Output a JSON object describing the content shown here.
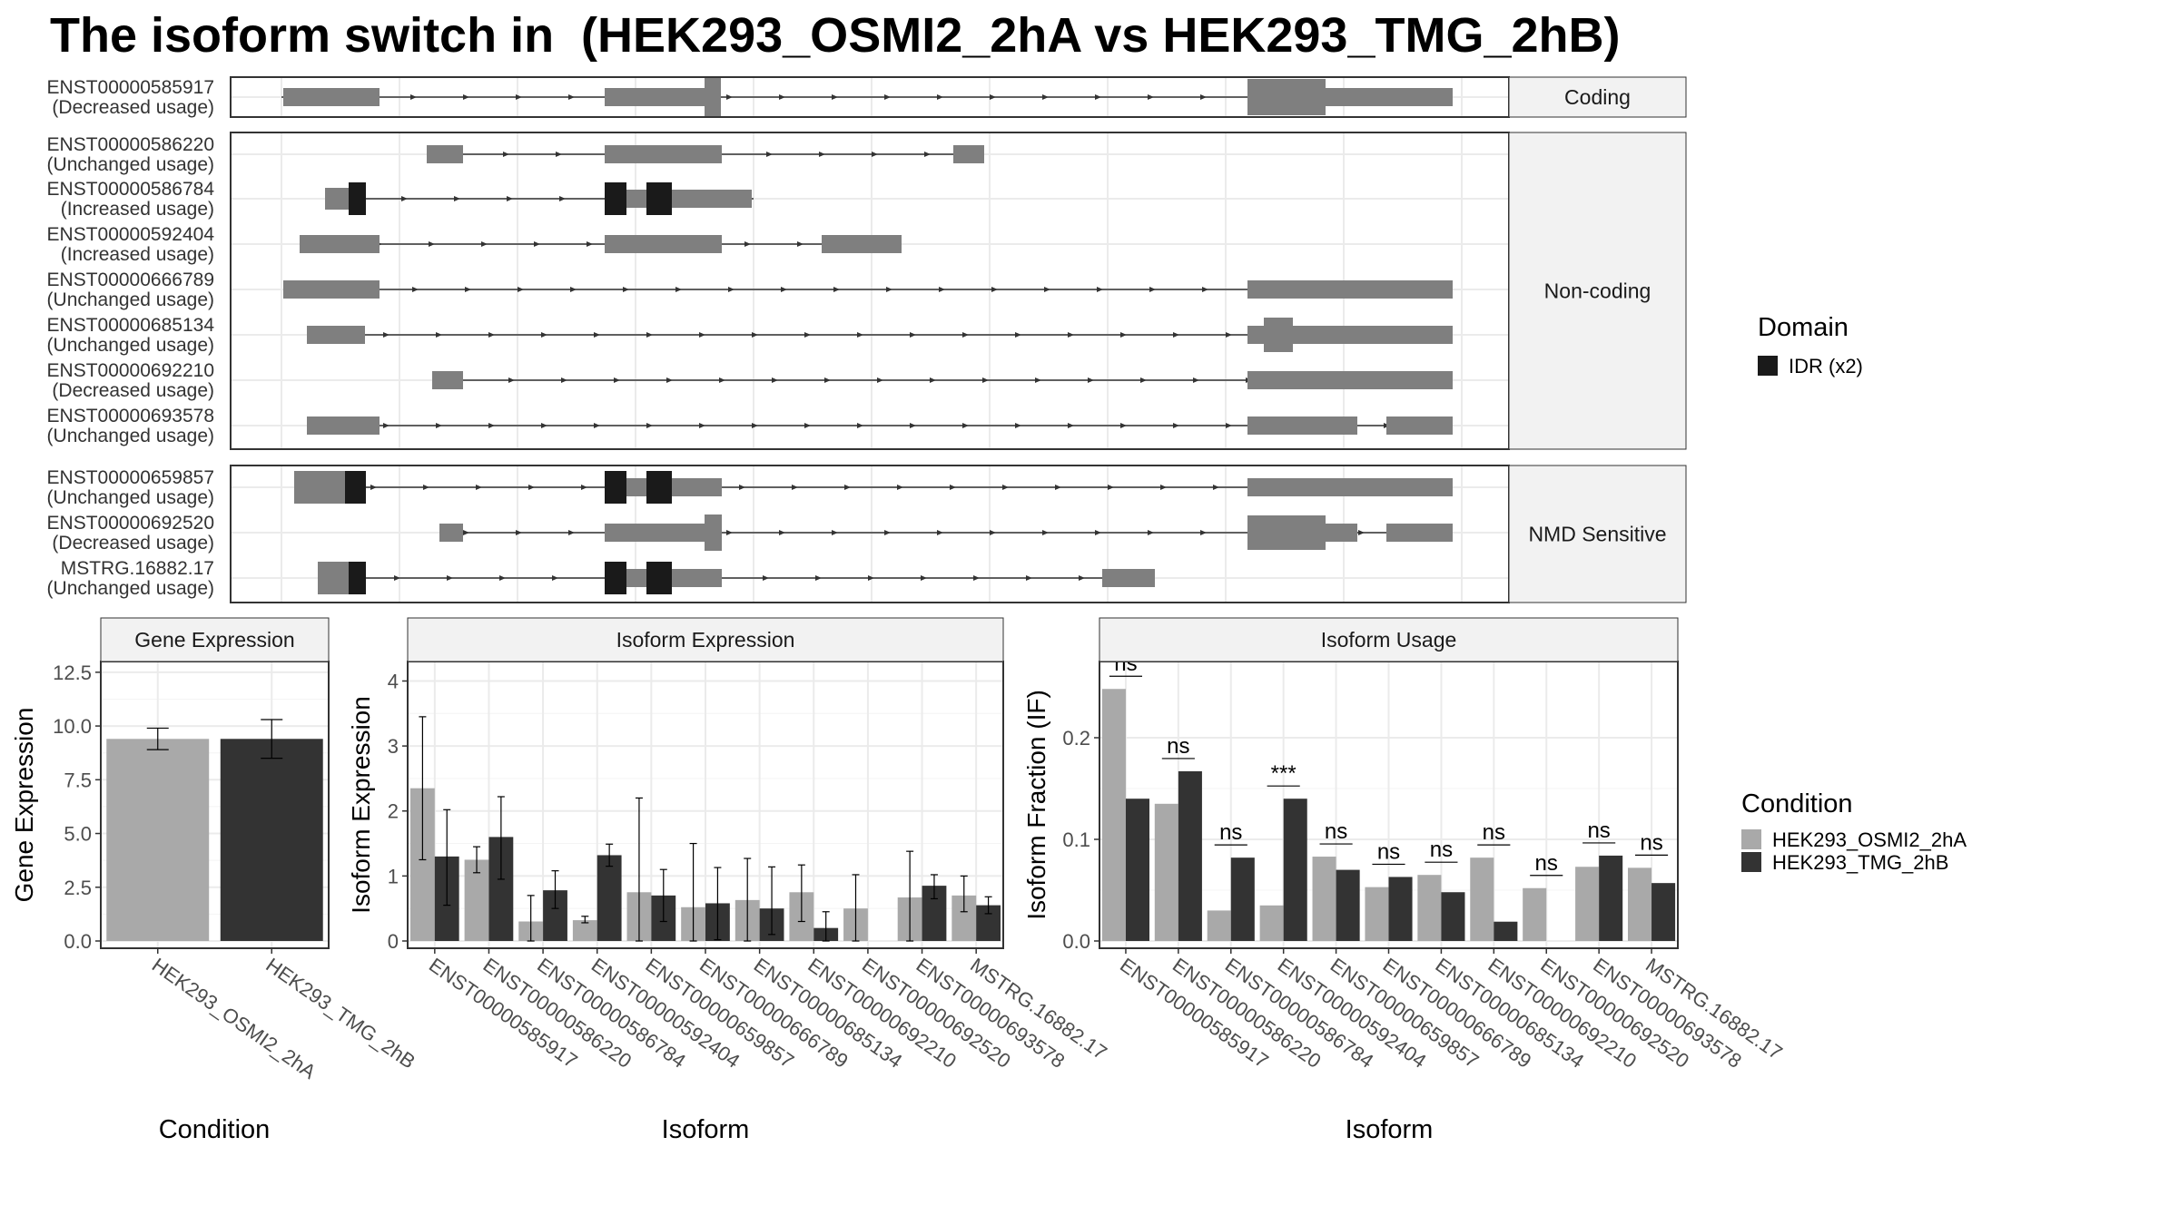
{
  "title": "The isoform switch in  (HEK293_OSMI2_2hA vs HEK293_TMG_2hB)",
  "colors": {
    "exon": "#7f7f7f",
    "domain": "#1a1a1a",
    "cond1": "#a9a9a9",
    "cond2": "#333333",
    "grid": "#ebebeb",
    "strip": "#f2f2f2",
    "frame": "#333333"
  },
  "structure": {
    "groups": [
      {
        "label": "Coding",
        "isoforms": [
          {
            "id": "ENST00000585917",
            "usage": "(Decreased usage)"
          }
        ]
      },
      {
        "label": "Non-coding",
        "isoforms": [
          {
            "id": "ENST00000586220",
            "usage": "(Unchanged usage)"
          },
          {
            "id": "ENST00000586784",
            "usage": "(Increased usage)"
          },
          {
            "id": "ENST00000592404",
            "usage": "(Increased usage)"
          },
          {
            "id": "ENST00000666789",
            "usage": "(Unchanged usage)"
          },
          {
            "id": "ENST00000685134",
            "usage": "(Unchanged usage)"
          },
          {
            "id": "ENST00000692210",
            "usage": "(Decreased usage)"
          },
          {
            "id": "ENST00000693578",
            "usage": "(Unchanged usage)"
          }
        ]
      },
      {
        "label": "NMD Sensitive",
        "isoforms": [
          {
            "id": "ENST00000659857",
            "usage": "(Unchanged usage)"
          },
          {
            "id": "ENST00000692520",
            "usage": "(Decreased usage)"
          },
          {
            "id": "MSTRG.16882.17",
            "usage": "(Unchanged usage)"
          }
        ]
      }
    ],
    "legend": {
      "title": "Domain",
      "items": [
        "IDR (x2)"
      ]
    }
  },
  "chart_data": [
    {
      "type": "bar",
      "title": "Gene Expression",
      "xlabel": "Condition",
      "ylabel": "Gene Expression",
      "ylim": [
        0,
        13
      ],
      "yticks": [
        "0.0",
        "2.5",
        "5.0",
        "7.5",
        "10.0",
        "12.5"
      ],
      "categories": [
        "HEK293_OSMI2_2hA",
        "HEK293_TMG_2hB"
      ],
      "values": [
        9.4,
        9.4
      ],
      "err_low": [
        8.9,
        8.5
      ],
      "err_high": [
        9.9,
        10.3
      ]
    },
    {
      "type": "bar",
      "title": "Isoform Expression",
      "xlabel": "Isoform",
      "ylabel": "Isoform Expression",
      "ylim": [
        0,
        4.3
      ],
      "yticks": [
        "0",
        "1",
        "2",
        "3",
        "4"
      ],
      "categories": [
        "ENST00000585917",
        "ENST00000586220",
        "ENST00000586784",
        "ENST00000592404",
        "ENST00000659857",
        "ENST00000666789",
        "ENST00000685134",
        "ENST00000692210",
        "ENST00000692520",
        "ENST00000693578",
        "MSTRG.16882.17"
      ],
      "series": [
        {
          "name": "HEK293_OSMI2_2hA",
          "values": [
            2.35,
            1.25,
            0.3,
            0.32,
            0.75,
            0.52,
            0.63,
            0.75,
            0.5,
            0.67,
            0.7
          ],
          "err_low": [
            1.25,
            1.05,
            0.0,
            0.28,
            0.0,
            0.0,
            0.0,
            0.3,
            0.0,
            0.0,
            0.45
          ],
          "err_high": [
            3.45,
            1.45,
            0.7,
            0.38,
            2.2,
            1.5,
            1.27,
            1.17,
            1.02,
            1.38,
            1.0
          ]
        },
        {
          "name": "HEK293_TMG_2hB",
          "values": [
            1.3,
            1.6,
            0.78,
            1.32,
            0.7,
            0.58,
            0.5,
            0.2,
            0.0,
            0.85,
            0.55
          ],
          "err_low": [
            0.55,
            0.95,
            0.5,
            1.15,
            0.3,
            0.02,
            0.1,
            0.0,
            0.0,
            0.65,
            0.42
          ],
          "err_high": [
            2.02,
            2.22,
            1.08,
            1.49,
            1.1,
            1.13,
            1.14,
            0.45,
            0.0,
            1.02,
            0.68
          ]
        }
      ]
    },
    {
      "type": "bar",
      "title": "Isoform Usage",
      "xlabel": "Isoform",
      "ylabel": "Isoform Fraction (IF)",
      "ylim": [
        0,
        0.275
      ],
      "yticks": [
        "0.0",
        "0.1",
        "0.2"
      ],
      "categories": [
        "ENST00000585917",
        "ENST00000586220",
        "ENST00000586784",
        "ENST00000592404",
        "ENST00000659857",
        "ENST00000666789",
        "ENST00000685134",
        "ENST00000692210",
        "ENST00000692520",
        "ENST00000693578",
        "MSTRG.16882.17"
      ],
      "series": [
        {
          "name": "HEK293_OSMI2_2hA",
          "values": [
            0.248,
            0.135,
            0.03,
            0.035,
            0.083,
            0.053,
            0.065,
            0.082,
            0.052,
            0.073,
            0.072
          ]
        },
        {
          "name": "HEK293_TMG_2hB",
          "values": [
            0.14,
            0.167,
            0.082,
            0.14,
            0.07,
            0.063,
            0.048,
            0.019,
            0.0,
            0.084,
            0.057
          ]
        }
      ],
      "significance": [
        "ns",
        "ns",
        "ns",
        "***",
        "ns",
        "ns",
        "ns",
        "ns",
        "ns",
        "ns",
        "ns"
      ],
      "legend": {
        "title": "Condition"
      }
    }
  ]
}
